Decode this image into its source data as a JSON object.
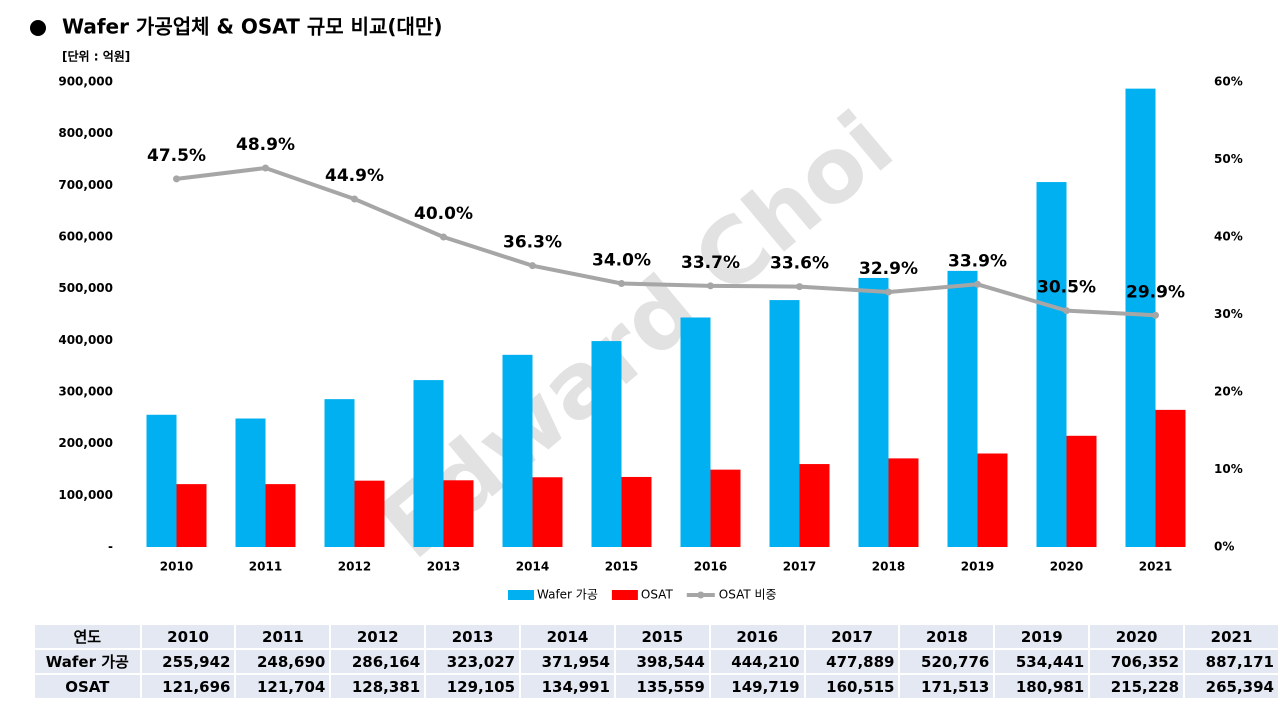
{
  "chart_data": {
    "type": "bar",
    "title": "Wafer 가공업체 & OSAT 규모 비교(대만)",
    "unit_label": "[단위 : 억원]",
    "watermark": "Edward Choi",
    "categories": [
      "2010",
      "2011",
      "2012",
      "2013",
      "2014",
      "2015",
      "2016",
      "2017",
      "2018",
      "2019",
      "2020",
      "2021"
    ],
    "series": [
      {
        "name": "Wafer 가공",
        "color": "#00b0f0",
        "values": [
          255942,
          248690,
          286164,
          323027,
          371954,
          398544,
          444210,
          477889,
          520776,
          534441,
          706352,
          887171
        ]
      },
      {
        "name": "OSAT",
        "color": "#ff0000",
        "values": [
          121696,
          121704,
          128381,
          129105,
          134991,
          135559,
          149719,
          160515,
          171513,
          180981,
          215228,
          265394
        ]
      },
      {
        "name": "OSAT 비중",
        "color": "#a6a6a6",
        "type": "line",
        "axis": "y2",
        "values": [
          47.5,
          48.9,
          44.9,
          40.0,
          36.3,
          34.0,
          33.7,
          33.6,
          32.9,
          33.9,
          30.5,
          29.9
        ],
        "value_labels": [
          "47.5%",
          "48.9%",
          "44.9%",
          "40.0%",
          "36.3%",
          "34.0%",
          "33.7%",
          "33.6%",
          "32.9%",
          "33.9%",
          "30.5%",
          "29.9%"
        ]
      }
    ],
    "ylim": [
      0,
      900000
    ],
    "yticks": [
      {
        "value": 0,
        "label": "-"
      },
      {
        "value": 100000,
        "label": "100,000"
      },
      {
        "value": 200000,
        "label": "200,000"
      },
      {
        "value": 300000,
        "label": "300,000"
      },
      {
        "value": 400000,
        "label": "400,000"
      },
      {
        "value": 500000,
        "label": "500,000"
      },
      {
        "value": 600000,
        "label": "600,000"
      },
      {
        "value": 700000,
        "label": "700,000"
      },
      {
        "value": 800000,
        "label": "800,000"
      },
      {
        "value": 900000,
        "label": "900,000"
      }
    ],
    "y2lim": [
      0,
      60
    ],
    "y2ticks": [
      {
        "value": 0,
        "label": "0%"
      },
      {
        "value": 10,
        "label": "10%"
      },
      {
        "value": 20,
        "label": "20%"
      },
      {
        "value": 30,
        "label": "30%"
      },
      {
        "value": 40,
        "label": "40%"
      },
      {
        "value": 50,
        "label": "50%"
      },
      {
        "value": 60,
        "label": "60%"
      }
    ],
    "grid": false,
    "legend": "bottom"
  },
  "table": {
    "header": [
      "연도",
      "2010",
      "2011",
      "2012",
      "2013",
      "2014",
      "2015",
      "2016",
      "2017",
      "2018",
      "2019",
      "2020",
      "2021"
    ],
    "rows": [
      [
        "Wafer 가공",
        "255,942",
        "248,690",
        "286,164",
        "323,027",
        "371,954",
        "398,544",
        "444,210",
        "477,889",
        "520,776",
        "534,441",
        "706,352",
        "887,171"
      ],
      [
        "OSAT",
        "121,696",
        "121,704",
        "128,381",
        "129,105",
        "134,991",
        "135,559",
        "149,719",
        "160,515",
        "171,513",
        "180,981",
        "215,228",
        "265,394"
      ]
    ]
  }
}
